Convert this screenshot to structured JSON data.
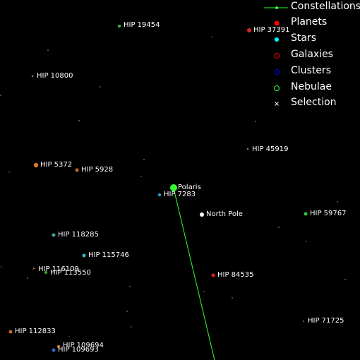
{
  "legend": {
    "items": [
      {
        "label": "Constellations",
        "color": "#33ff33",
        "icon": "constellation-line-icon"
      },
      {
        "label": "Planets",
        "color": "#ff0000",
        "icon": "planet-dot-icon"
      },
      {
        "label": "Stars",
        "color": "#00ffff",
        "icon": "star-dot-icon"
      },
      {
        "label": "Galaxies",
        "color": "#ff0000",
        "icon": "galaxy-ring-icon"
      },
      {
        "label": "Clusters",
        "color": "#0000ff",
        "icon": "cluster-ring-icon"
      },
      {
        "label": "Nebulae",
        "color": "#33ff33",
        "icon": "nebula-ring-icon"
      },
      {
        "label": "Selection",
        "color": "#ffffff",
        "icon": "selection-cross-icon"
      }
    ]
  },
  "objects": [
    {
      "name": "HIP 19454",
      "color": "#33cc33"
    },
    {
      "name": "HIP 37391",
      "color": "#dd2222"
    },
    {
      "name": "HIP 10800",
      "color": "#999966"
    },
    {
      "name": "HIP 45919",
      "color": "#669966"
    },
    {
      "name": "HIP 5372",
      "color": "#dd7722"
    },
    {
      "name": "HIP 5928",
      "color": "#cc6622"
    },
    {
      "name": "Polaris",
      "color": "#33ff33"
    },
    {
      "name": "HIP 7283",
      "color": "#3399cc"
    },
    {
      "name": "North Pole",
      "color": "#ffffff"
    },
    {
      "name": "HIP 59767",
      "color": "#33cc33"
    },
    {
      "name": "HIP 118285",
      "color": "#33aaaa"
    },
    {
      "name": "HIP 115746",
      "color": "#33bbcc"
    },
    {
      "name": "HIP 116109",
      "color": "#999966"
    },
    {
      "name": "HIP 113550",
      "color": "#33aa33"
    },
    {
      "name": "HIP 84535",
      "color": "#dd2222"
    },
    {
      "name": "HIP 71725",
      "color": "#cc6622"
    },
    {
      "name": "HIP 112833",
      "color": "#cc6622"
    },
    {
      "name": "HIP 109694",
      "color": "#cc7722"
    },
    {
      "name": "HIP 109693",
      "color": "#3366cc"
    }
  ]
}
